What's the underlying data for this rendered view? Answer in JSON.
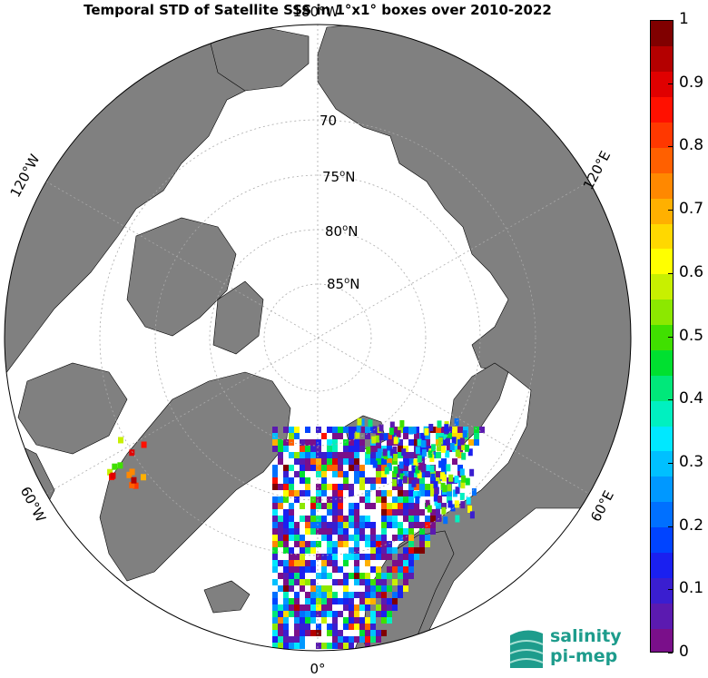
{
  "title": "Temporal STD of Satellite SSS in 1°x1° boxes over 2010-2022",
  "map": {
    "projection": "north-polar-stereographic",
    "ocean_color": "#ffffff",
    "land_color": "#808080",
    "graticule_color": "#aaaaaa",
    "latitude_labels": [
      {
        "deg": "70",
        "suffix": "N",
        "text": "70"
      },
      {
        "deg": "75",
        "suffix": "N",
        "text": "75"
      },
      {
        "deg": "80",
        "suffix": "N",
        "text": "80"
      },
      {
        "deg": "85",
        "suffix": "N",
        "text": "85"
      }
    ],
    "longitude_labels": [
      {
        "deg": "180",
        "suffix": "W",
        "text": "180°W"
      },
      {
        "deg": "120",
        "suffix": "E",
        "text": "120°E"
      },
      {
        "deg": "60",
        "suffix": "E",
        "text": "60°E"
      },
      {
        "deg": "0",
        "suffix": "",
        "text": "0°"
      },
      {
        "deg": "60",
        "suffix": "W",
        "text": "60°W"
      },
      {
        "deg": "120",
        "suffix": "W",
        "text": "120°W"
      }
    ]
  },
  "colorbar": {
    "min": 0,
    "max": 1,
    "ticks": [
      "0",
      "0.1",
      "0.2",
      "0.3",
      "0.4",
      "0.5",
      "0.6",
      "0.7",
      "0.8",
      "0.9",
      "1"
    ],
    "colors": [
      "#7a0f8a",
      "#5b1ab0",
      "#3a1ed0",
      "#1a20f0",
      "#0044ff",
      "#0070ff",
      "#0098ff",
      "#00c0ff",
      "#00e8ff",
      "#00f0c0",
      "#00e87a",
      "#00e030",
      "#40e000",
      "#8ce800",
      "#c8f000",
      "#ffff00",
      "#ffd800",
      "#ffb000",
      "#ff8800",
      "#ff6000",
      "#ff3800",
      "#ff1000",
      "#e00000",
      "#b40000",
      "#800000"
    ]
  },
  "logo": {
    "line1": "salinity",
    "line2": "pi-mep"
  }
}
